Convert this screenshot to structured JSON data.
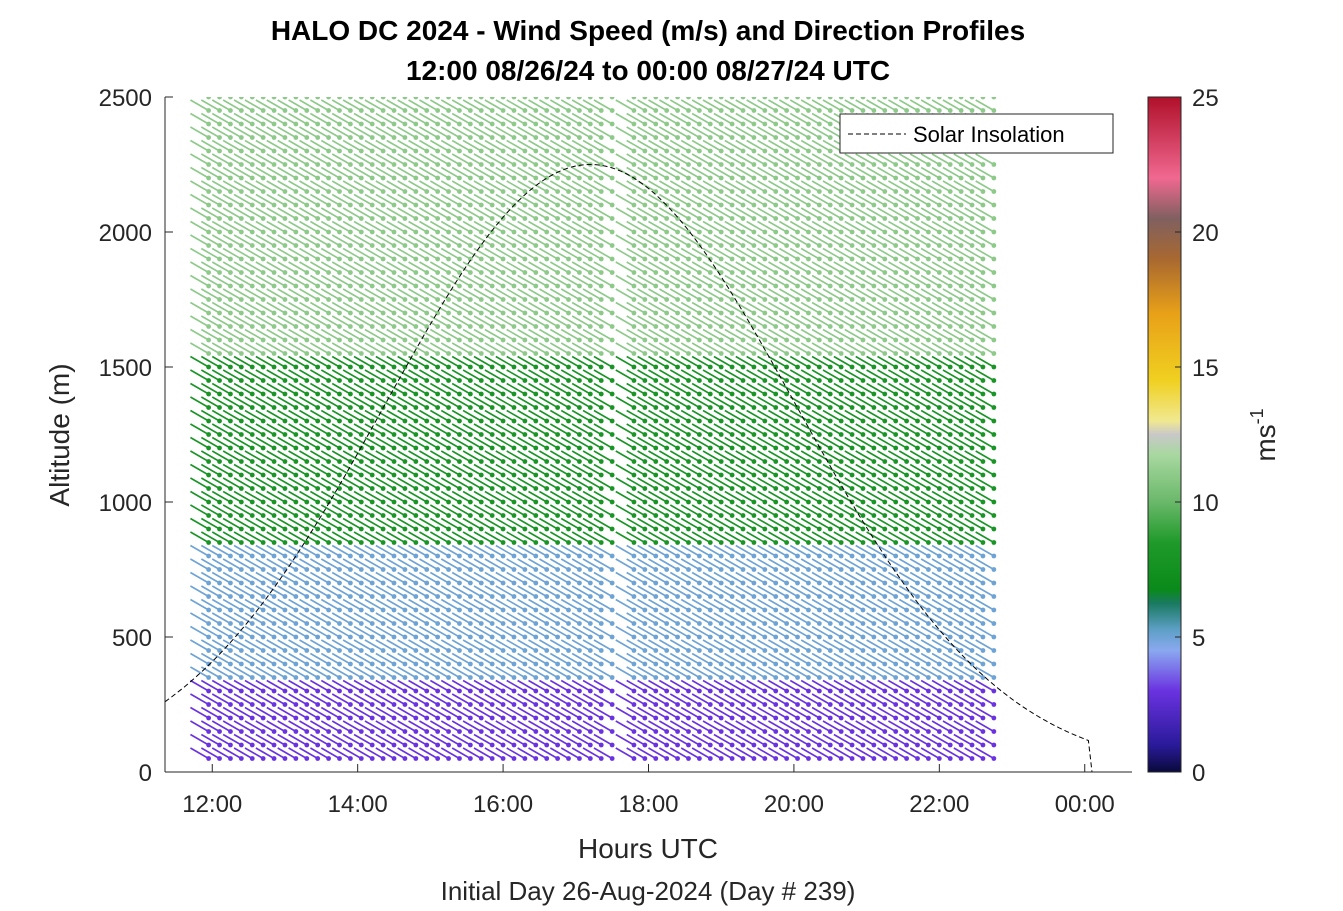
{
  "chart_data": {
    "type": "quiver",
    "title": [
      "HALO DC 2024 - Wind Speed (m/s) and Direction Profiles",
      "12:00 08/26/24 to 00:00 08/27/24  UTC"
    ],
    "xlabel": "Hours UTC",
    "ylabel": "Altitude (m)",
    "subtitle": "Initial Day 26-Aug-2024 (Day # 239)",
    "x_ticks": [
      "12:00",
      "14:00",
      "16:00",
      "18:00",
      "20:00",
      "22:00",
      "00:00"
    ],
    "x_tick_hours": [
      12,
      14,
      16,
      18,
      20,
      22,
      24
    ],
    "xlim_hours": [
      11.35,
      24.65
    ],
    "y_ticks": [
      "0",
      "500",
      "1000",
      "1500",
      "2000",
      "2500"
    ],
    "y_tick_values": [
      0,
      500,
      1000,
      1500,
      2000,
      2500
    ],
    "ylim": [
      0,
      2500
    ],
    "colorbar": {
      "label": "ms",
      "label_superscript": "-1",
      "ticks": [
        "0",
        "5",
        "10",
        "15",
        "20",
        "25"
      ],
      "tick_values": [
        0,
        5,
        10,
        15,
        20,
        25
      ],
      "range": [
        0,
        25
      ]
    },
    "legend": {
      "entries": [
        "Solar Insolation"
      ],
      "placement": "top-right"
    },
    "profile_hours": [
      11.95,
      12.1,
      12.25,
      12.4,
      12.55,
      12.7,
      12.85,
      13.0,
      13.15,
      13.3,
      13.45,
      13.6,
      13.75,
      13.9,
      14.05,
      14.2,
      14.35,
      14.5,
      14.65,
      14.8,
      14.95,
      15.1,
      15.25,
      15.4,
      15.55,
      15.7,
      15.85,
      16.0,
      16.15,
      16.3,
      16.45,
      16.6,
      16.75,
      16.9,
      17.05,
      17.2,
      17.35,
      17.5,
      17.8,
      17.95,
      18.1,
      18.25,
      18.4,
      18.55,
      18.7,
      18.85,
      19.0,
      19.15,
      19.3,
      19.45,
      19.6,
      19.75,
      19.9,
      20.05,
      20.2,
      20.35,
      20.5,
      20.65,
      20.8,
      20.95,
      21.1,
      21.25,
      21.4,
      21.55,
      21.7,
      21.85,
      22.0,
      22.15,
      22.3,
      22.45,
      22.6,
      22.75
    ],
    "altitude_gates_m": [
      50,
      100,
      150,
      200,
      250,
      300,
      350,
      400,
      450,
      500,
      550,
      600,
      650,
      700,
      750,
      800,
      850,
      900,
      950,
      1000,
      1050,
      1100,
      1150,
      1200,
      1250,
      1300,
      1350,
      1400,
      1450,
      1500,
      1550,
      1600,
      1650,
      1700,
      1750,
      1800,
      1850,
      1900,
      1950,
      2000,
      2050,
      2100,
      2150,
      2200,
      2250,
      2300,
      2350,
      2400,
      2450,
      2500
    ],
    "wind_direction_deg": 300,
    "wind_speed_by_layer": [
      {
        "altitude_range_m": [
          0,
          300
        ],
        "speed": 3
      },
      {
        "altitude_range_m": [
          300,
          800
        ],
        "speed": 5
      },
      {
        "altitude_range_m": [
          800,
          1500
        ],
        "speed": 8
      },
      {
        "altitude_range_m": [
          1500,
          2500
        ],
        "speed": 11
      }
    ],
    "series": [
      {
        "name": "Solar Insolation",
        "peak_hour": 17.2,
        "peak_altitude_m": 2250,
        "zero_hour": 24.1
      }
    ]
  }
}
